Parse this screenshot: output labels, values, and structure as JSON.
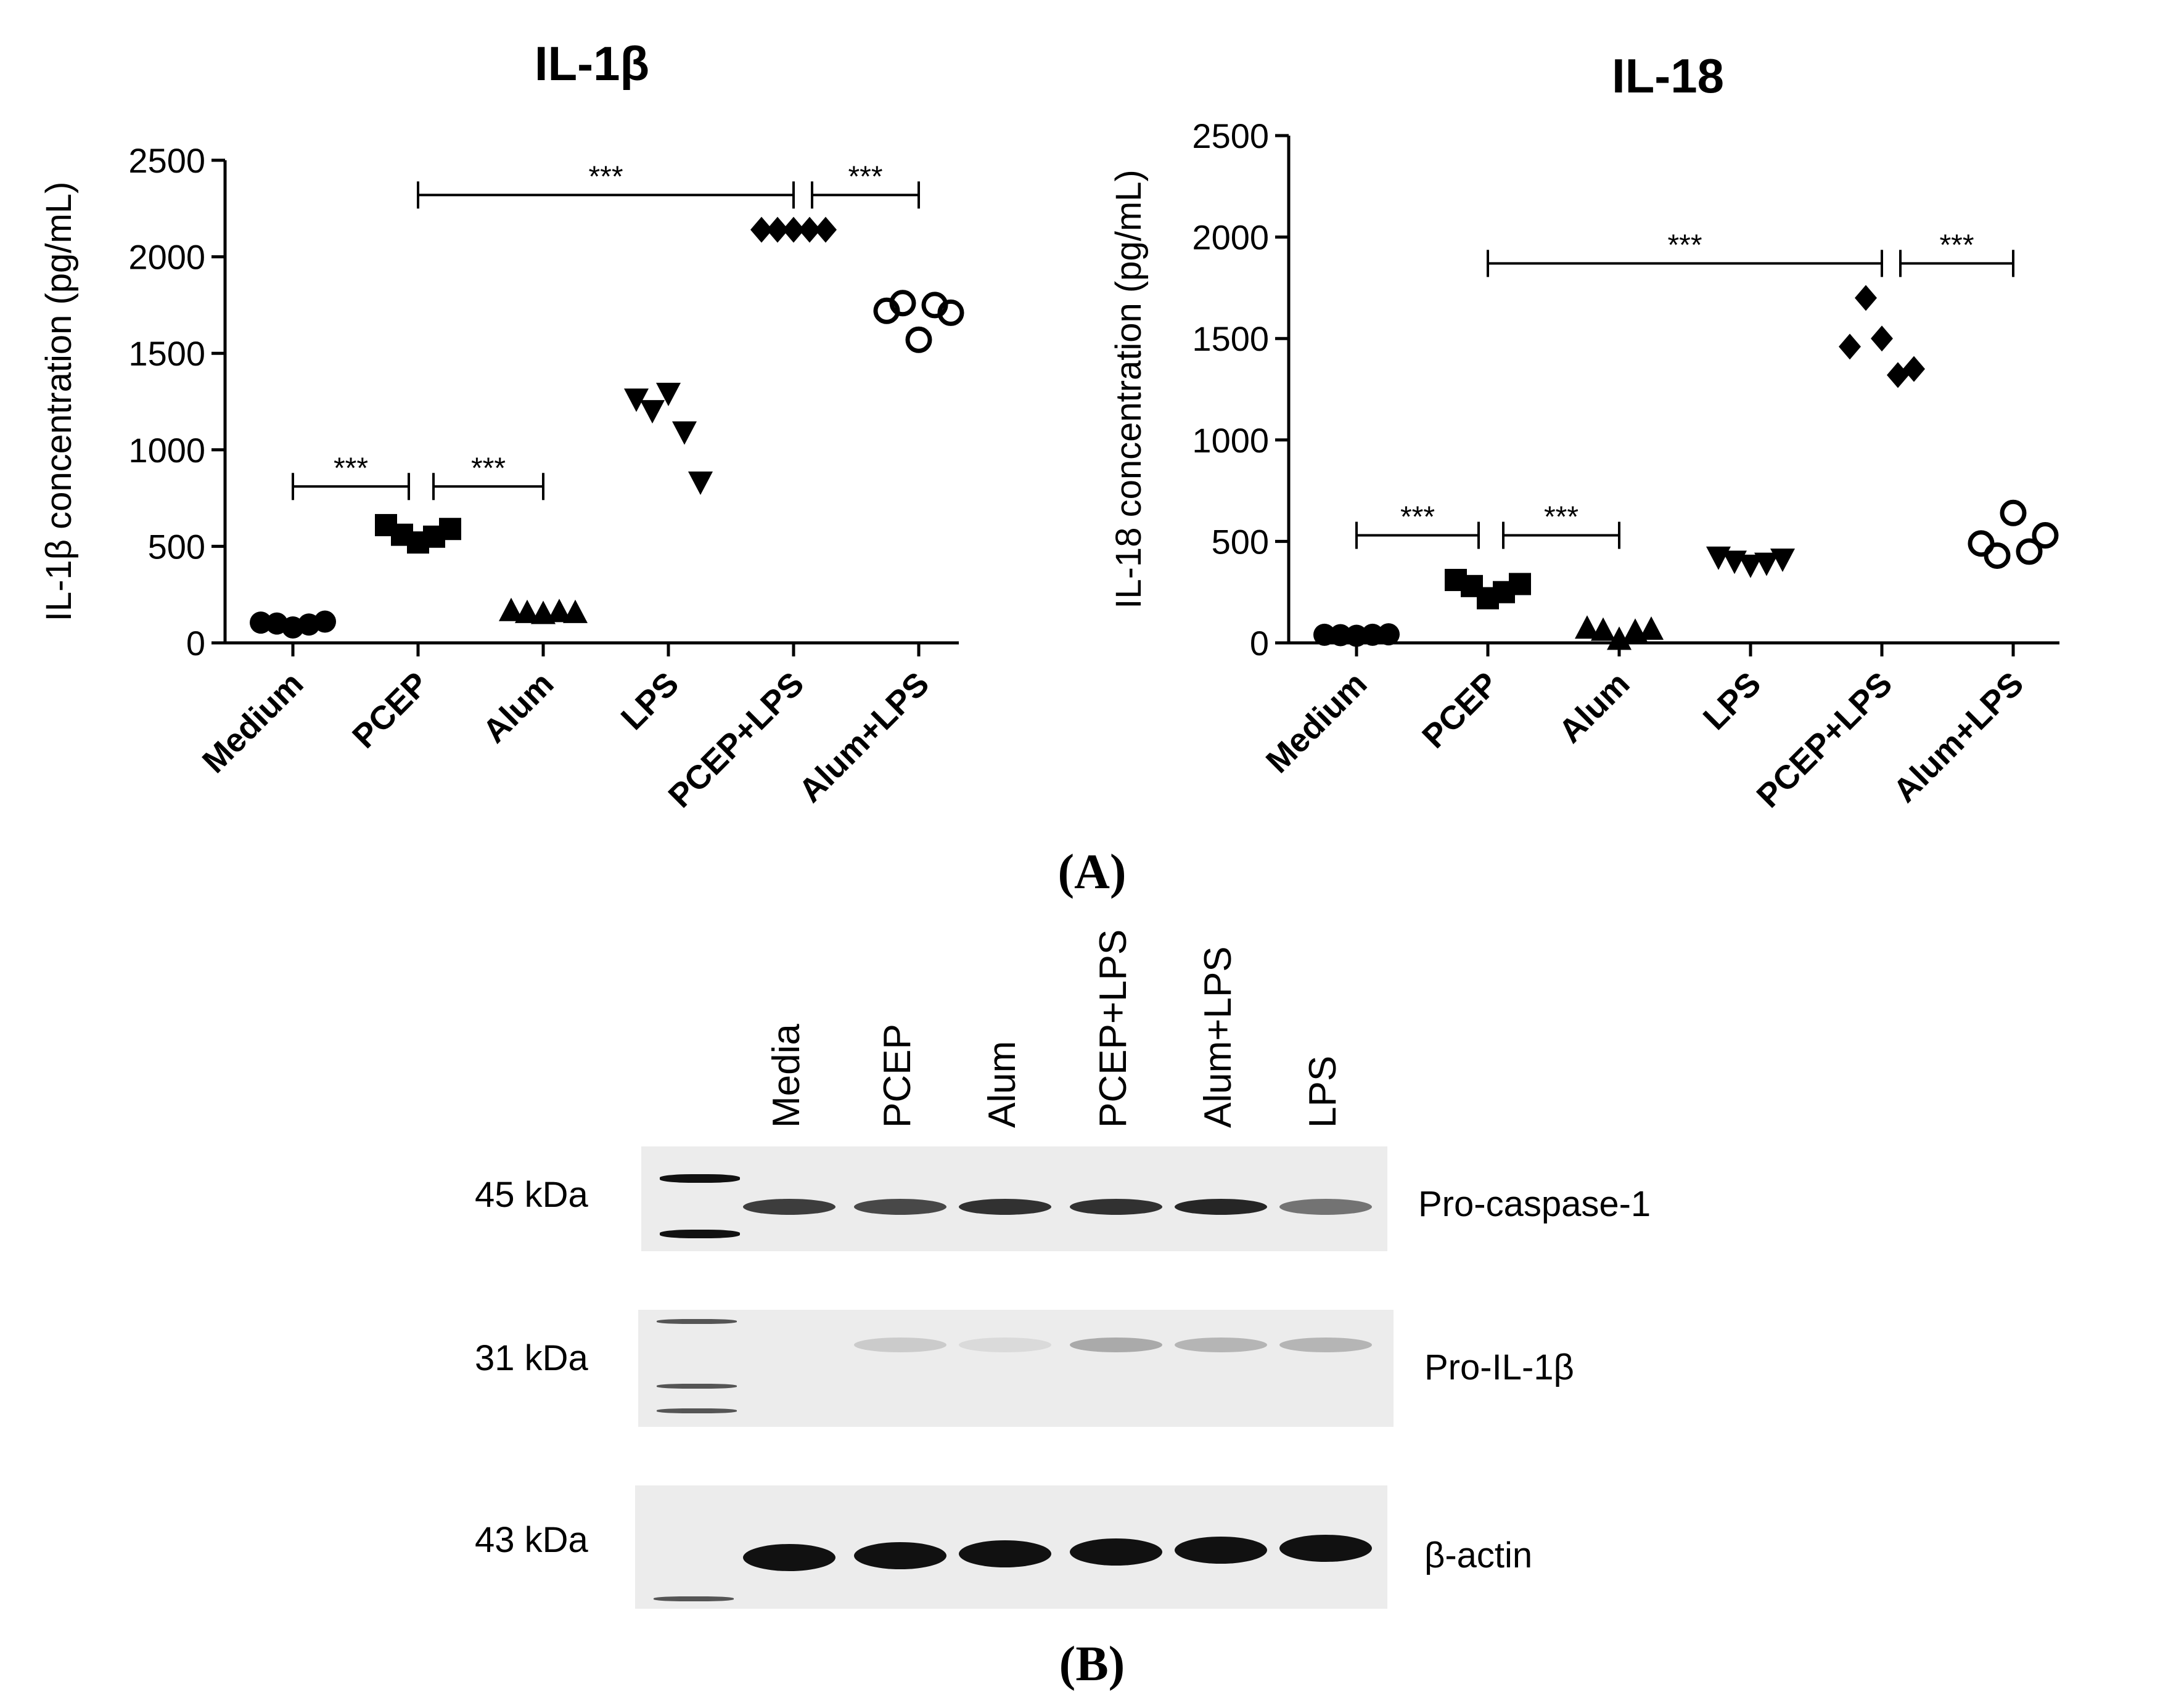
{
  "chart_data": [
    {
      "type": "scatter",
      "title": "IL-1β",
      "ylabel": "IL-1β concentration (pg/mL)",
      "ylim": [
        0,
        2500
      ],
      "yticks": [
        0,
        500,
        1000,
        1500,
        2000,
        2500
      ],
      "categories": [
        "Medium",
        "PCEP",
        "Alum",
        "LPS",
        "PCEP+LPS",
        "Alum+LPS"
      ],
      "series": [
        {
          "category": "Medium",
          "marker": "circle-filled",
          "values": [
            105,
            100,
            80,
            95,
            110
          ]
        },
        {
          "category": "PCEP",
          "marker": "square-filled",
          "values": [
            610,
            560,
            520,
            550,
            590
          ]
        },
        {
          "category": "Alum",
          "marker": "triangle-up-filled",
          "values": [
            170,
            160,
            155,
            165,
            160
          ]
        },
        {
          "category": "LPS",
          "marker": "triangle-down-filled",
          "values": [
            1260,
            1200,
            1290,
            1090,
            830
          ]
        },
        {
          "category": "PCEP+LPS",
          "marker": "diamond-filled",
          "values": [
            2140,
            2140,
            2140,
            2140,
            2140
          ]
        },
        {
          "category": "Alum+LPS",
          "marker": "circle-open",
          "values": [
            1720,
            1760,
            1570,
            1750,
            1710
          ]
        }
      ],
      "significance": [
        {
          "from": "Medium",
          "to": "PCEP",
          "label": "***",
          "y": 810
        },
        {
          "from": "PCEP",
          "to": "Alum",
          "label": "***",
          "y": 810
        },
        {
          "from": "PCEP",
          "to": "PCEP+LPS",
          "label": "***",
          "y": 2320
        },
        {
          "from": "PCEP+LPS",
          "to": "Alum+LPS",
          "label": "***",
          "y": 2320
        }
      ]
    },
    {
      "type": "scatter",
      "title": "IL-18",
      "ylabel": "IL-18 concentration (pg/mL)",
      "ylim": [
        0,
        2500
      ],
      "yticks": [
        0,
        500,
        1000,
        1500,
        2000,
        2500
      ],
      "categories": [
        "Medium",
        "PCEP",
        "Alum",
        "LPS",
        "PCEP+LPS",
        "Alum+LPS"
      ],
      "series": [
        {
          "category": "Medium",
          "marker": "circle-filled",
          "values": [
            40,
            38,
            35,
            40,
            42
          ]
        },
        {
          "category": "PCEP",
          "marker": "square-filled",
          "values": [
            310,
            280,
            220,
            250,
            290
          ]
        },
        {
          "category": "Alum",
          "marker": "triangle-up-filled",
          "values": [
            75,
            65,
            20,
            60,
            70
          ]
        },
        {
          "category": "LPS",
          "marker": "triangle-down-filled",
          "values": [
            420,
            400,
            380,
            390,
            410
          ]
        },
        {
          "category": "PCEP+LPS",
          "marker": "diamond-filled",
          "values": [
            1460,
            1700,
            1500,
            1320,
            1350
          ]
        },
        {
          "category": "Alum+LPS",
          "marker": "circle-open",
          "values": [
            490,
            430,
            640,
            450,
            530
          ]
        }
      ],
      "significance": [
        {
          "from": "Medium",
          "to": "PCEP",
          "label": "***",
          "y": 530
        },
        {
          "from": "PCEP",
          "to": "Alum",
          "label": "***",
          "y": 530
        },
        {
          "from": "PCEP",
          "to": "PCEP+LPS",
          "label": "***",
          "y": 1870
        },
        {
          "from": "PCEP+LPS",
          "to": "Alum+LPS",
          "label": "***",
          "y": 1870
        }
      ]
    }
  ],
  "panel_labels": {
    "a": "(A)",
    "b": "(B)"
  },
  "western_blot": {
    "lanes": [
      "Media",
      "PCEP",
      "Alum",
      "PCEP+LPS",
      "Alum+LPS",
      "LPS"
    ],
    "rows": [
      {
        "kda": "45 kDa",
        "protein": "Pro-caspase-1",
        "band_intensity": [
          0.8,
          0.75,
          0.85,
          0.85,
          0.9,
          0.55
        ]
      },
      {
        "kda": "31 kDa",
        "protein": "Pro-IL-1β",
        "band_intensity": [
          0.0,
          0.15,
          0.08,
          0.3,
          0.25,
          0.25
        ]
      },
      {
        "kda": "43 kDa",
        "protein": "β-actin",
        "band_intensity": [
          1.0,
          1.0,
          1.0,
          1.0,
          1.0,
          1.0
        ]
      }
    ],
    "colors": {
      "membrane": "#ececec",
      "band": "#111111"
    }
  }
}
